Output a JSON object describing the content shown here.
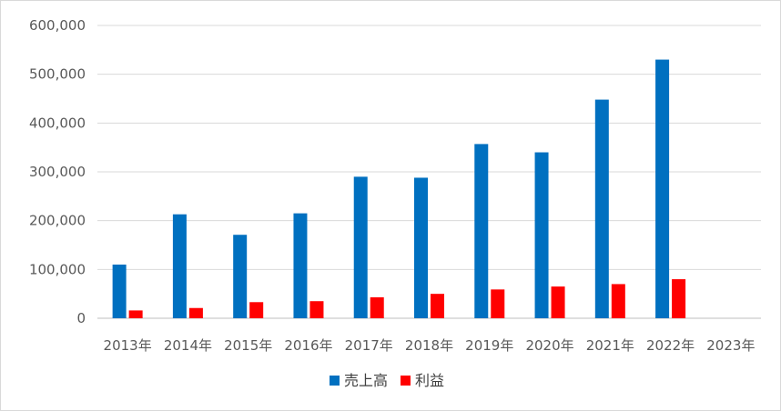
{
  "chart_data": {
    "type": "bar",
    "categories": [
      "2013年",
      "2014年",
      "2015年",
      "2016年",
      "2017年",
      "2018年",
      "2019年",
      "2020年",
      "2021年",
      "2022年",
      "2023年"
    ],
    "series": [
      {
        "name": "売上高",
        "color": "#0070c0",
        "values": [
          110000,
          213000,
          171000,
          215000,
          290000,
          288000,
          357000,
          340000,
          448000,
          530000,
          null
        ]
      },
      {
        "name": "利益",
        "color": "#ff0000",
        "values": [
          16000,
          21000,
          33000,
          35000,
          43000,
          50000,
          59000,
          65000,
          70000,
          80000,
          null
        ]
      }
    ],
    "yticks": [
      "0",
      "100,000",
      "200,000",
      "300,000",
      "400,000",
      "500,000",
      "600,000"
    ],
    "ylim": [
      0,
      600000
    ],
    "grid": true,
    "legend": "bottom"
  }
}
